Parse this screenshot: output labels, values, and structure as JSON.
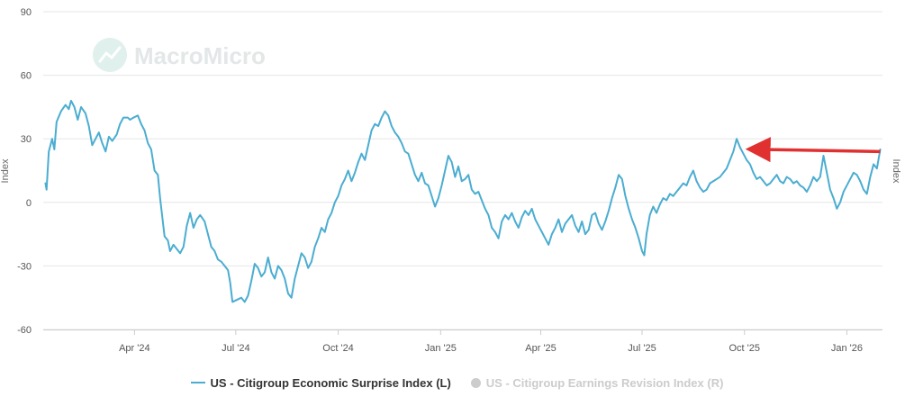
{
  "watermark": {
    "text": "MacroMicro"
  },
  "chart_data": {
    "type": "line",
    "title": "",
    "y_left_label": "Index",
    "y_right_label": "Index",
    "ylim": [
      -60,
      90
    ],
    "y_ticks": [
      -60,
      -30,
      0,
      30,
      60,
      90
    ],
    "y_tick_labels": [
      "-60",
      "-30",
      "0",
      "30",
      "60",
      "90"
    ],
    "xlim": [
      "2024-01-10",
      "2026-02-02"
    ],
    "x_ticks": [
      "2024-04-01",
      "2024-07-01",
      "2024-10-01",
      "2025-01-01",
      "2025-04-01",
      "2025-07-01",
      "2025-10-01",
      "2026-01-01"
    ],
    "x_tick_labels": [
      "Apr '24",
      "Jul '24",
      "Oct '24",
      "Jan '25",
      "Apr '25",
      "Jul '25",
      "Oct '25",
      "Jan '26"
    ],
    "grid": true,
    "legend_position": "bottom",
    "series": [
      {
        "name": "US - Citigroup Economic Surprise Index (L)",
        "color": "#4badd1",
        "visible": true,
        "points": [
          [
            "2024-01-12",
            9
          ],
          [
            "2024-01-13",
            6
          ],
          [
            "2024-01-15",
            24
          ],
          [
            "2024-01-18",
            30
          ],
          [
            "2024-01-20",
            25
          ],
          [
            "2024-01-22",
            38
          ],
          [
            "2024-01-26",
            43
          ],
          [
            "2024-01-30",
            46
          ],
          [
            "2024-02-02",
            44
          ],
          [
            "2024-02-04",
            48
          ],
          [
            "2024-02-07",
            45
          ],
          [
            "2024-02-10",
            39
          ],
          [
            "2024-02-13",
            45
          ],
          [
            "2024-02-17",
            42
          ],
          [
            "2024-02-20",
            36
          ],
          [
            "2024-02-23",
            27
          ],
          [
            "2024-02-26",
            30
          ],
          [
            "2024-02-29",
            33
          ],
          [
            "2024-03-03",
            28
          ],
          [
            "2024-03-06",
            24
          ],
          [
            "2024-03-09",
            31
          ],
          [
            "2024-03-12",
            29
          ],
          [
            "2024-03-16",
            32
          ],
          [
            "2024-03-19",
            37
          ],
          [
            "2024-03-22",
            40
          ],
          [
            "2024-03-26",
            40
          ],
          [
            "2024-03-28",
            39
          ],
          [
            "2024-03-31",
            40
          ],
          [
            "2024-04-04",
            41
          ],
          [
            "2024-04-07",
            37
          ],
          [
            "2024-04-10",
            34
          ],
          [
            "2024-04-13",
            28
          ],
          [
            "2024-04-16",
            25
          ],
          [
            "2024-04-19",
            15
          ],
          [
            "2024-04-22",
            13
          ],
          [
            "2024-04-24",
            2
          ],
          [
            "2024-04-26",
            -7
          ],
          [
            "2024-04-28",
            -16
          ],
          [
            "2024-05-01",
            -18
          ],
          [
            "2024-05-03",
            -23
          ],
          [
            "2024-05-06",
            -20
          ],
          [
            "2024-05-09",
            -22
          ],
          [
            "2024-05-12",
            -24
          ],
          [
            "2024-05-15",
            -21
          ],
          [
            "2024-05-18",
            -11
          ],
          [
            "2024-05-21",
            -5
          ],
          [
            "2024-05-24",
            -12
          ],
          [
            "2024-05-27",
            -8
          ],
          [
            "2024-05-30",
            -6
          ],
          [
            "2024-06-03",
            -9
          ],
          [
            "2024-06-06",
            -15
          ],
          [
            "2024-06-09",
            -21
          ],
          [
            "2024-06-12",
            -23
          ],
          [
            "2024-06-15",
            -27
          ],
          [
            "2024-06-18",
            -28
          ],
          [
            "2024-06-21",
            -30
          ],
          [
            "2024-06-24",
            -32
          ],
          [
            "2024-06-26",
            -38
          ],
          [
            "2024-06-28",
            -47
          ],
          [
            "2024-07-02",
            -46
          ],
          [
            "2024-07-06",
            -45
          ],
          [
            "2024-07-09",
            -47
          ],
          [
            "2024-07-12",
            -44
          ],
          [
            "2024-07-15",
            -37
          ],
          [
            "2024-07-18",
            -29
          ],
          [
            "2024-07-21",
            -31
          ],
          [
            "2024-07-24",
            -35
          ],
          [
            "2024-07-27",
            -33
          ],
          [
            "2024-07-30",
            -26
          ],
          [
            "2024-08-02",
            -33
          ],
          [
            "2024-08-05",
            -36
          ],
          [
            "2024-08-08",
            -30
          ],
          [
            "2024-08-11",
            -32
          ],
          [
            "2024-08-14",
            -36
          ],
          [
            "2024-08-17",
            -43
          ],
          [
            "2024-08-20",
            -45
          ],
          [
            "2024-08-23",
            -36
          ],
          [
            "2024-08-26",
            -30
          ],
          [
            "2024-08-29",
            -24
          ],
          [
            "2024-09-01",
            -26
          ],
          [
            "2024-09-04",
            -31
          ],
          [
            "2024-09-07",
            -28
          ],
          [
            "2024-09-10",
            -21
          ],
          [
            "2024-09-13",
            -17
          ],
          [
            "2024-09-16",
            -12
          ],
          [
            "2024-09-19",
            -14
          ],
          [
            "2024-09-22",
            -8
          ],
          [
            "2024-09-25",
            -5
          ],
          [
            "2024-09-28",
            0
          ],
          [
            "2024-10-01",
            3
          ],
          [
            "2024-10-04",
            8
          ],
          [
            "2024-10-07",
            11
          ],
          [
            "2024-10-10",
            15
          ],
          [
            "2024-10-13",
            10
          ],
          [
            "2024-10-16",
            14
          ],
          [
            "2024-10-19",
            19
          ],
          [
            "2024-10-22",
            23
          ],
          [
            "2024-10-25",
            20
          ],
          [
            "2024-10-28",
            27
          ],
          [
            "2024-10-31",
            34
          ],
          [
            "2024-11-03",
            37
          ],
          [
            "2024-11-06",
            36
          ],
          [
            "2024-11-09",
            40
          ],
          [
            "2024-11-12",
            43
          ],
          [
            "2024-11-15",
            41
          ],
          [
            "2024-11-18",
            36
          ],
          [
            "2024-11-21",
            33
          ],
          [
            "2024-11-24",
            31
          ],
          [
            "2024-11-27",
            28
          ],
          [
            "2024-11-30",
            24
          ],
          [
            "2024-12-03",
            23
          ],
          [
            "2024-12-06",
            18
          ],
          [
            "2024-12-09",
            13
          ],
          [
            "2024-12-12",
            10
          ],
          [
            "2024-12-15",
            14
          ],
          [
            "2024-12-18",
            9
          ],
          [
            "2024-12-21",
            8
          ],
          [
            "2024-12-24",
            3
          ],
          [
            "2024-12-27",
            -2
          ],
          [
            "2024-12-30",
            2
          ],
          [
            "2025-01-02",
            8
          ],
          [
            "2025-01-05",
            15
          ],
          [
            "2025-01-08",
            22
          ],
          [
            "2025-01-11",
            19
          ],
          [
            "2025-01-14",
            12
          ],
          [
            "2025-01-17",
            17
          ],
          [
            "2025-01-20",
            10
          ],
          [
            "2025-01-23",
            11
          ],
          [
            "2025-01-26",
            13
          ],
          [
            "2025-01-29",
            6
          ],
          [
            "2025-02-01",
            4
          ],
          [
            "2025-02-04",
            5
          ],
          [
            "2025-02-07",
            1
          ],
          [
            "2025-02-10",
            -3
          ],
          [
            "2025-02-13",
            -6
          ],
          [
            "2025-02-16",
            -12
          ],
          [
            "2025-02-19",
            -14
          ],
          [
            "2025-02-22",
            -17
          ],
          [
            "2025-02-25",
            -9
          ],
          [
            "2025-02-28",
            -6
          ],
          [
            "2025-03-03",
            -8
          ],
          [
            "2025-03-06",
            -5
          ],
          [
            "2025-03-09",
            -9
          ],
          [
            "2025-03-12",
            -12
          ],
          [
            "2025-03-15",
            -7
          ],
          [
            "2025-03-18",
            -4
          ],
          [
            "2025-03-21",
            -6
          ],
          [
            "2025-03-24",
            -3
          ],
          [
            "2025-03-27",
            -8
          ],
          [
            "2025-03-30",
            -11
          ],
          [
            "2025-04-02",
            -14
          ],
          [
            "2025-04-05",
            -17
          ],
          [
            "2025-04-08",
            -20
          ],
          [
            "2025-04-11",
            -15
          ],
          [
            "2025-04-14",
            -12
          ],
          [
            "2025-04-17",
            -8
          ],
          [
            "2025-04-20",
            -14
          ],
          [
            "2025-04-23",
            -10
          ],
          [
            "2025-04-26",
            -8
          ],
          [
            "2025-04-29",
            -6
          ],
          [
            "2025-05-02",
            -11
          ],
          [
            "2025-05-05",
            -14
          ],
          [
            "2025-05-08",
            -9
          ],
          [
            "2025-05-11",
            -15
          ],
          [
            "2025-05-14",
            -13
          ],
          [
            "2025-05-17",
            -6
          ],
          [
            "2025-05-20",
            -5
          ],
          [
            "2025-05-23",
            -10
          ],
          [
            "2025-05-26",
            -13
          ],
          [
            "2025-05-29",
            -9
          ],
          [
            "2025-06-01",
            -4
          ],
          [
            "2025-06-04",
            2
          ],
          [
            "2025-06-07",
            7
          ],
          [
            "2025-06-10",
            13
          ],
          [
            "2025-06-13",
            11
          ],
          [
            "2025-06-16",
            3
          ],
          [
            "2025-06-19",
            -3
          ],
          [
            "2025-06-22",
            -8
          ],
          [
            "2025-06-25",
            -12
          ],
          [
            "2025-06-28",
            -17
          ],
          [
            "2025-07-01",
            -23
          ],
          [
            "2025-07-03",
            -25
          ],
          [
            "2025-07-05",
            -15
          ],
          [
            "2025-07-08",
            -6
          ],
          [
            "2025-07-11",
            -2
          ],
          [
            "2025-07-14",
            -5
          ],
          [
            "2025-07-17",
            -1
          ],
          [
            "2025-07-20",
            2
          ],
          [
            "2025-07-23",
            1
          ],
          [
            "2025-07-26",
            4
          ],
          [
            "2025-07-29",
            3
          ],
          [
            "2025-08-01",
            5
          ],
          [
            "2025-08-04",
            7
          ],
          [
            "2025-08-07",
            9
          ],
          [
            "2025-08-10",
            8
          ],
          [
            "2025-08-13",
            12
          ],
          [
            "2025-08-16",
            15
          ],
          [
            "2025-08-19",
            10
          ],
          [
            "2025-08-22",
            7
          ],
          [
            "2025-08-25",
            5
          ],
          [
            "2025-08-28",
            6
          ],
          [
            "2025-08-31",
            9
          ],
          [
            "2025-09-03",
            10
          ],
          [
            "2025-09-06",
            11
          ],
          [
            "2025-09-09",
            12
          ],
          [
            "2025-09-12",
            14
          ],
          [
            "2025-09-15",
            16
          ],
          [
            "2025-09-18",
            20
          ],
          [
            "2025-09-21",
            24
          ],
          [
            "2025-09-24",
            30
          ],
          [
            "2025-09-27",
            26
          ],
          [
            "2025-09-30",
            23
          ],
          [
            "2025-10-03",
            20
          ],
          [
            "2025-10-06",
            18
          ],
          [
            "2025-10-09",
            14
          ],
          [
            "2025-10-12",
            11
          ],
          [
            "2025-10-15",
            12
          ],
          [
            "2025-10-18",
            10
          ],
          [
            "2025-10-21",
            8
          ],
          [
            "2025-10-24",
            9
          ],
          [
            "2025-10-27",
            11
          ],
          [
            "2025-10-30",
            13
          ],
          [
            "2025-11-02",
            10
          ],
          [
            "2025-11-05",
            9
          ],
          [
            "2025-11-08",
            12
          ],
          [
            "2025-11-11",
            11
          ],
          [
            "2025-11-14",
            9
          ],
          [
            "2025-11-17",
            10
          ],
          [
            "2025-11-20",
            8
          ],
          [
            "2025-11-23",
            7
          ],
          [
            "2025-11-26",
            5
          ],
          [
            "2025-11-29",
            8
          ],
          [
            "2025-12-02",
            12
          ],
          [
            "2025-12-05",
            10
          ],
          [
            "2025-12-08",
            12
          ],
          [
            "2025-12-11",
            22
          ],
          [
            "2025-12-14",
            14
          ],
          [
            "2025-12-17",
            6
          ],
          [
            "2025-12-20",
            2
          ],
          [
            "2025-12-23",
            -3
          ],
          [
            "2025-12-26",
            0
          ],
          [
            "2025-12-29",
            5
          ],
          [
            "2026-01-01",
            8
          ],
          [
            "2026-01-04",
            11
          ],
          [
            "2026-01-07",
            14
          ],
          [
            "2026-01-10",
            13
          ],
          [
            "2026-01-13",
            10
          ],
          [
            "2026-01-16",
            6
          ],
          [
            "2026-01-19",
            4
          ],
          [
            "2026-01-22",
            12
          ],
          [
            "2026-01-25",
            18
          ],
          [
            "2026-01-28",
            16
          ],
          [
            "2026-01-31",
            25
          ]
        ]
      },
      {
        "name": "US - Citigroup Earnings Revision Index (R)",
        "color": "#cccccc",
        "visible": false,
        "points": []
      }
    ],
    "annotations": [
      {
        "type": "arrow",
        "color": "#e03030",
        "from": [
          "2026-01-31",
          24
        ],
        "to": [
          "2025-10-03",
          25
        ]
      }
    ]
  }
}
